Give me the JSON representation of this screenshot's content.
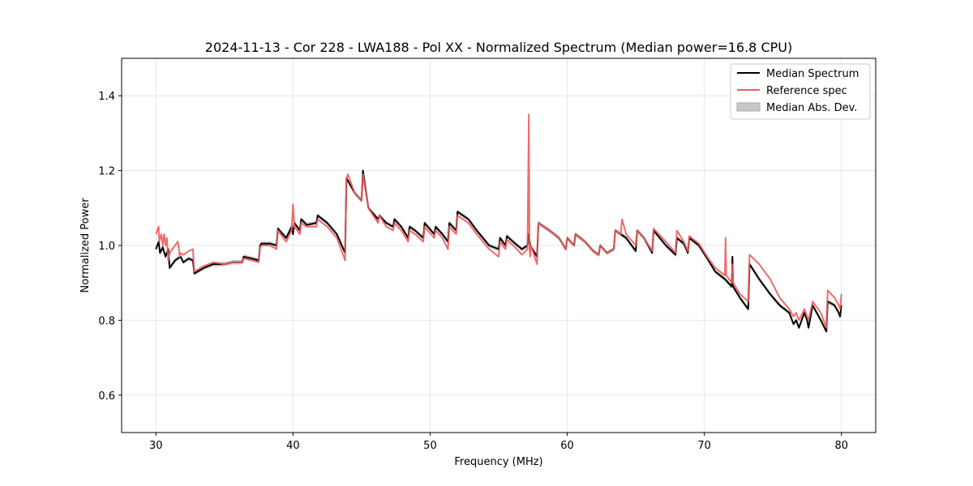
{
  "chart_data": {
    "type": "line",
    "title": "2024-11-13 - Cor 228 - LWA188 - Pol XX - Normalized Spectrum (Median power=16.8 CPU)",
    "xlabel": "Frequency (MHz)",
    "ylabel": "Normalized Power",
    "xlim": [
      27.5,
      82.5
    ],
    "ylim": [
      0.5,
      1.5
    ],
    "xticks": [
      30,
      40,
      50,
      60,
      70,
      80
    ],
    "xtick_labels": [
      "30",
      "40",
      "50",
      "60",
      "70",
      "80"
    ],
    "yticks": [
      0.6,
      0.8,
      1.0,
      1.2,
      1.4
    ],
    "ytick_labels": [
      "0.6",
      "0.8",
      "1.0",
      "1.2",
      "1.4"
    ],
    "grid": true,
    "legend_position": "top-right",
    "legend": [
      "Median Spectrum",
      "Reference spec",
      "Median Abs. Dev."
    ],
    "colors": {
      "median": "#000000",
      "reference": "#f05a5a",
      "mad": "#c8c8c8",
      "mad_edge": "#a8a8a8"
    },
    "series": [
      {
        "name": "Median Spectrum",
        "x": [
          30.0,
          30.2,
          30.3,
          30.5,
          30.7,
          30.9,
          31.0,
          31.4,
          31.8,
          32.0,
          32.4,
          32.7,
          32.8,
          33.5,
          34.2,
          35.0,
          35.6,
          36.3,
          36.4,
          37.0,
          37.5,
          37.6,
          37.7,
          38.3,
          38.8,
          38.9,
          39.5,
          39.9,
          40.0,
          40.1,
          40.5,
          40.6,
          41.0,
          41.7,
          41.8,
          42.5,
          43.2,
          43.8,
          43.9,
          44.5,
          45.0,
          45.1,
          45.5,
          46.2,
          46.3,
          46.8,
          47.3,
          47.4,
          47.9,
          48.4,
          48.5,
          48.9,
          49.5,
          49.6,
          50.3,
          50.4,
          50.9,
          51.3,
          51.4,
          51.9,
          52.0,
          52.8,
          53.4,
          54.3,
          55.0,
          55.1,
          55.5,
          55.6,
          56.2,
          56.7,
          57.1,
          57.2,
          57.3,
          57.8,
          57.9,
          58.7,
          59.4,
          59.9,
          60.0,
          60.5,
          60.6,
          61.3,
          61.9,
          62.3,
          62.4,
          62.9,
          63.4,
          63.5,
          64.3,
          65.0,
          65.1,
          65.6,
          66.2,
          66.3,
          67.2,
          67.9,
          68.0,
          68.5,
          68.8,
          68.9,
          69.6,
          70.3,
          70.8,
          71.5,
          72.0,
          72.05,
          72.1,
          72.6,
          73.2,
          73.3,
          74.0,
          74.8,
          75.5,
          76.2,
          76.5,
          76.7,
          76.9,
          77.3,
          77.5,
          77.6,
          77.9,
          78.5,
          78.9,
          79.0,
          79.5,
          79.8,
          79.9,
          80.0
        ],
        "values": [
          0.99,
          1.01,
          0.98,
          0.995,
          0.97,
          0.99,
          0.94,
          0.96,
          0.97,
          0.955,
          0.965,
          0.96,
          0.925,
          0.94,
          0.95,
          0.95,
          0.955,
          0.955,
          0.97,
          0.965,
          0.96,
          1.0,
          1.005,
          1.005,
          1.0,
          1.045,
          1.02,
          1.05,
          1.03,
          1.06,
          1.04,
          1.07,
          1.055,
          1.06,
          1.08,
          1.06,
          1.03,
          0.98,
          1.18,
          1.14,
          1.12,
          1.2,
          1.1,
          1.07,
          1.08,
          1.06,
          1.05,
          1.07,
          1.05,
          1.02,
          1.05,
          1.04,
          1.02,
          1.06,
          1.03,
          1.05,
          1.03,
          1.01,
          1.06,
          1.04,
          1.09,
          1.07,
          1.04,
          1.0,
          0.99,
          1.02,
          1.0,
          1.025,
          1.005,
          0.99,
          1.0,
          1.03,
          1.0,
          0.97,
          1.06,
          1.04,
          1.02,
          0.99,
          1.02,
          1.0,
          1.03,
          1.01,
          0.985,
          0.975,
          1.0,
          0.98,
          0.99,
          1.04,
          1.02,
          0.985,
          1.04,
          1.02,
          0.98,
          1.04,
          1.0,
          0.975,
          1.02,
          1.005,
          0.98,
          1.02,
          1.0,
          0.96,
          0.93,
          0.91,
          0.89,
          0.97,
          0.89,
          0.86,
          0.83,
          0.95,
          0.91,
          0.87,
          0.84,
          0.82,
          0.79,
          0.8,
          0.78,
          0.82,
          0.8,
          0.78,
          0.84,
          0.8,
          0.77,
          0.85,
          0.84,
          0.82,
          0.81,
          0.84
        ]
      },
      {
        "name": "Reference spec",
        "x": [
          30.0,
          30.2,
          30.25,
          30.4,
          30.5,
          30.6,
          30.7,
          30.8,
          30.9,
          31.0,
          31.2,
          31.6,
          31.75,
          31.8,
          32.0,
          32.4,
          32.7,
          32.8,
          33.5,
          34.2,
          35.0,
          35.6,
          36.3,
          36.4,
          37.0,
          37.5,
          37.6,
          37.7,
          38.3,
          38.8,
          38.9,
          39.5,
          39.9,
          40.0,
          40.1,
          40.5,
          40.6,
          41.0,
          41.7,
          41.8,
          42.5,
          43.2,
          43.8,
          43.9,
          44.0,
          44.5,
          45.0,
          45.1,
          45.5,
          46.2,
          46.3,
          46.8,
          47.3,
          47.4,
          47.9,
          48.4,
          48.5,
          48.9,
          49.5,
          49.6,
          50.3,
          50.4,
          50.9,
          51.3,
          51.4,
          51.9,
          52.0,
          52.8,
          53.4,
          54.3,
          55.0,
          55.1,
          55.5,
          55.6,
          56.2,
          56.7,
          57.1,
          57.2,
          57.25,
          57.3,
          57.35,
          57.8,
          57.9,
          58.7,
          59.4,
          59.9,
          60.0,
          60.5,
          60.6,
          61.3,
          61.9,
          62.3,
          62.4,
          62.9,
          63.4,
          63.5,
          63.9,
          64.0,
          64.3,
          65.0,
          65.1,
          65.6,
          66.2,
          66.3,
          67.2,
          67.9,
          68.0,
          68.5,
          68.8,
          68.9,
          69.6,
          70.3,
          70.8,
          71.5,
          71.55,
          71.6,
          72.0,
          72.05,
          72.1,
          72.6,
          73.2,
          73.3,
          74.0,
          74.8,
          75.5,
          76.2,
          76.5,
          76.7,
          76.9,
          77.3,
          77.5,
          77.6,
          77.9,
          78.5,
          78.9,
          79.0,
          79.5,
          79.8,
          79.9,
          80.0
        ],
        "values": [
          1.03,
          1.05,
          1.01,
          1.03,
          1.0,
          1.03,
          1.0,
          1.02,
          0.96,
          0.98,
          0.99,
          1.01,
          0.97,
          0.98,
          0.975,
          0.985,
          0.99,
          0.93,
          0.945,
          0.955,
          0.95,
          0.955,
          0.955,
          0.965,
          0.96,
          0.955,
          0.995,
          1.0,
          1.0,
          0.99,
          1.04,
          1.01,
          1.04,
          1.11,
          1.05,
          1.03,
          1.06,
          1.05,
          1.05,
          1.07,
          1.05,
          1.02,
          0.96,
          1.18,
          1.19,
          1.14,
          1.12,
          1.19,
          1.1,
          1.06,
          1.08,
          1.05,
          1.04,
          1.06,
          1.04,
          1.01,
          1.04,
          1.03,
          1.01,
          1.05,
          1.02,
          1.04,
          1.02,
          0.99,
          1.05,
          1.03,
          1.08,
          1.06,
          1.03,
          0.99,
          0.97,
          1.01,
          0.99,
          1.015,
          0.995,
          0.975,
          0.99,
          1.35,
          0.99,
          0.97,
          1.0,
          0.95,
          1.06,
          1.04,
          1.02,
          0.99,
          1.02,
          1.0,
          1.03,
          1.01,
          0.985,
          0.975,
          1.0,
          0.98,
          0.99,
          1.04,
          1.03,
          1.07,
          1.03,
          1.0,
          1.04,
          1.02,
          0.985,
          1.045,
          1.01,
          0.98,
          1.04,
          1.01,
          0.985,
          1.025,
          1.005,
          0.965,
          0.94,
          0.92,
          1.02,
          0.92,
          0.9,
          0.95,
          0.9,
          0.87,
          0.85,
          0.975,
          0.95,
          0.91,
          0.86,
          0.83,
          0.81,
          0.82,
          0.8,
          0.83,
          0.81,
          0.8,
          0.85,
          0.82,
          0.78,
          0.88,
          0.86,
          0.84,
          0.83,
          0.87
        ]
      }
    ],
    "mad_band_halfwidth": 0.006
  }
}
